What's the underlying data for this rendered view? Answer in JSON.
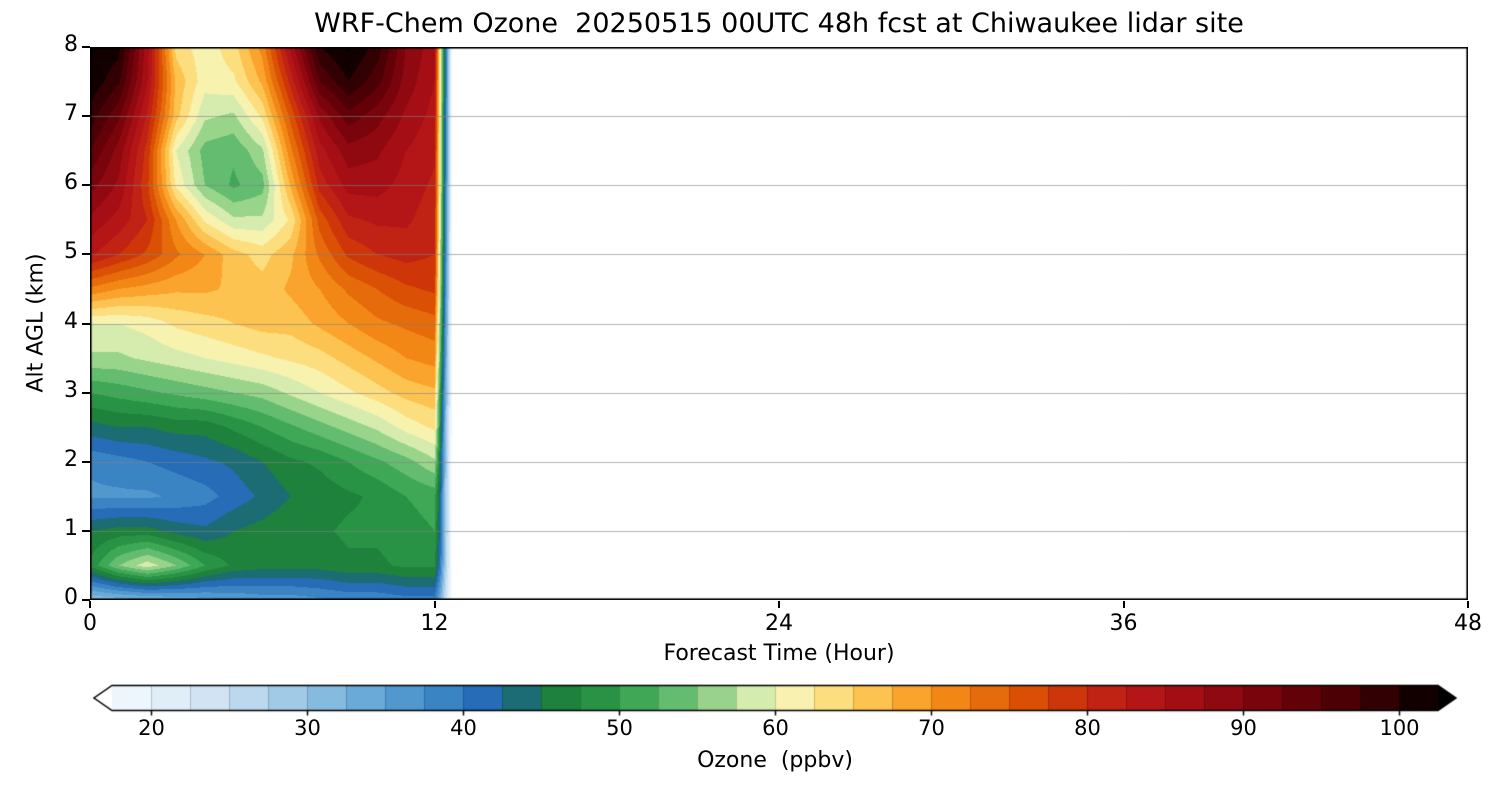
{
  "figure": {
    "title": "WRF-Chem Ozone  20250515 00UTC 48h fcst at Chiwaukee lidar site"
  },
  "chart_data": {
    "type": "heatmap",
    "title": "WRF-Chem Ozone  20250515 00UTC 48h fcst at Chiwaukee lidar site",
    "xlabel": "Forecast Time (Hour)",
    "ylabel": "Alt AGL (km)",
    "xlim": [
      0,
      48
    ],
    "ylim": [
      0,
      8
    ],
    "xticks": [
      0,
      12,
      24,
      36,
      48
    ],
    "yticks": [
      0,
      1,
      2,
      3,
      4,
      5,
      6,
      7,
      8
    ],
    "grid": "horizontal-gray",
    "data_extent_hours": [
      0,
      12.6
    ],
    "times": [
      0,
      1,
      2,
      3,
      4,
      5,
      6,
      7,
      8,
      9,
      10,
      11,
      12,
      12.2,
      12.4,
      12.6
    ],
    "altitudes": [
      0,
      0.5,
      1,
      1.5,
      2,
      2.5,
      3,
      3.5,
      4,
      4.5,
      5,
      5.5,
      6,
      6.5,
      7,
      7.5,
      8
    ],
    "values_row_order": "rows follow altitudes ascending; columns follow times",
    "values": [
      [
        30,
        31,
        32,
        33,
        34,
        35,
        36,
        36,
        37,
        38,
        38,
        39,
        39,
        33,
        24,
        17
      ],
      [
        48,
        55,
        59,
        55,
        50,
        47,
        46,
        46,
        46,
        47,
        47,
        48,
        48,
        40,
        27,
        17
      ],
      [
        45,
        46,
        46,
        44,
        43,
        45,
        46,
        47,
        47,
        48,
        48,
        49,
        50,
        42,
        28,
        17
      ],
      [
        37,
        37,
        37,
        38,
        39,
        41,
        43,
        45,
        46,
        47,
        48,
        50,
        51,
        43,
        28,
        17
      ],
      [
        38,
        39,
        40,
        41,
        42,
        43,
        45,
        47,
        48,
        50,
        52,
        54,
        57,
        45,
        29,
        17
      ],
      [
        44,
        45,
        45,
        46,
        46,
        48,
        50,
        52,
        54,
        56,
        58,
        61,
        63,
        48,
        30,
        17
      ],
      [
        50,
        51,
        52,
        53,
        54,
        55,
        56,
        58,
        60,
        62,
        64,
        66,
        67,
        50,
        32,
        17
      ],
      [
        57,
        57,
        58,
        59,
        60,
        61,
        62,
        63,
        64,
        66,
        68,
        70,
        71,
        53,
        34,
        17
      ],
      [
        60,
        60,
        61,
        63,
        64,
        65,
        66,
        66,
        68,
        70,
        72,
        73,
        74,
        55,
        35,
        17
      ],
      [
        72,
        70,
        69,
        68,
        68,
        67,
        66,
        68,
        70,
        73,
        75,
        77,
        78,
        57,
        36,
        17
      ],
      [
        83,
        80,
        77,
        73,
        70,
        66,
        64,
        67,
        73,
        78,
        80,
        81,
        80,
        58,
        37,
        17
      ],
      [
        87,
        84,
        80,
        70,
        62,
        58,
        58,
        63,
        76,
        82,
        83,
        83,
        81,
        59,
        38,
        17
      ],
      [
        91,
        87,
        78,
        62,
        55,
        52,
        54,
        68,
        81,
        86,
        86,
        84,
        82,
        60,
        38,
        17
      ],
      [
        95,
        89,
        79,
        60,
        54,
        53,
        57,
        72,
        84,
        89,
        88,
        85,
        83,
        60,
        39,
        17
      ],
      [
        99,
        93,
        82,
        66,
        58,
        57,
        63,
        76,
        88,
        94,
        91,
        87,
        84,
        61,
        39,
        17
      ],
      [
        102,
        98,
        85,
        67,
        61,
        62,
        68,
        81,
        95,
        100,
        96,
        89,
        85,
        61,
        40,
        17
      ],
      [
        103,
        101,
        86,
        64,
        61,
        64,
        71,
        86,
        100,
        103,
        99,
        90,
        86,
        62,
        40,
        17
      ]
    ],
    "colorbar": {
      "label": "Ozone  (ppbv)",
      "ticks": [
        20,
        30,
        40,
        50,
        60,
        70,
        80,
        90,
        100
      ],
      "bar_range": [
        17.5,
        102.5
      ],
      "vmin": 15,
      "level_step": 2.5,
      "under_color": "#ffffff",
      "over_color": "#000000",
      "colormap": [
        [
          15,
          "#ffffff"
        ],
        [
          20,
          "#e8f3fb"
        ],
        [
          25,
          "#c9dff2"
        ],
        [
          30,
          "#94c4e4"
        ],
        [
          35,
          "#5da2d4"
        ],
        [
          40,
          "#2f7abf"
        ],
        [
          42.5,
          "#1d5fae"
        ],
        [
          45,
          "#1a7a3a"
        ],
        [
          47.5,
          "#22883f"
        ],
        [
          50,
          "#2f9e4a"
        ],
        [
          52.5,
          "#4fb264"
        ],
        [
          55,
          "#7ac77c"
        ],
        [
          57.5,
          "#b8e09a"
        ],
        [
          60,
          "#f3f9c4"
        ],
        [
          62.5,
          "#fdea9a"
        ],
        [
          65,
          "#fdd264"
        ],
        [
          67.5,
          "#fdb43e"
        ],
        [
          70,
          "#f7941d"
        ],
        [
          72.5,
          "#ed7a0e"
        ],
        [
          75,
          "#e05c06"
        ],
        [
          77.5,
          "#d54302"
        ],
        [
          80,
          "#c62a12"
        ],
        [
          82.5,
          "#bb1a16"
        ],
        [
          85,
          "#ad1016"
        ],
        [
          87.5,
          "#9a0c13"
        ],
        [
          90,
          "#85060e"
        ],
        [
          92.5,
          "#6f020a"
        ],
        [
          95,
          "#580007"
        ],
        [
          97.5,
          "#400004"
        ],
        [
          100,
          "#250002"
        ],
        [
          102.5,
          "#000000"
        ]
      ]
    }
  }
}
